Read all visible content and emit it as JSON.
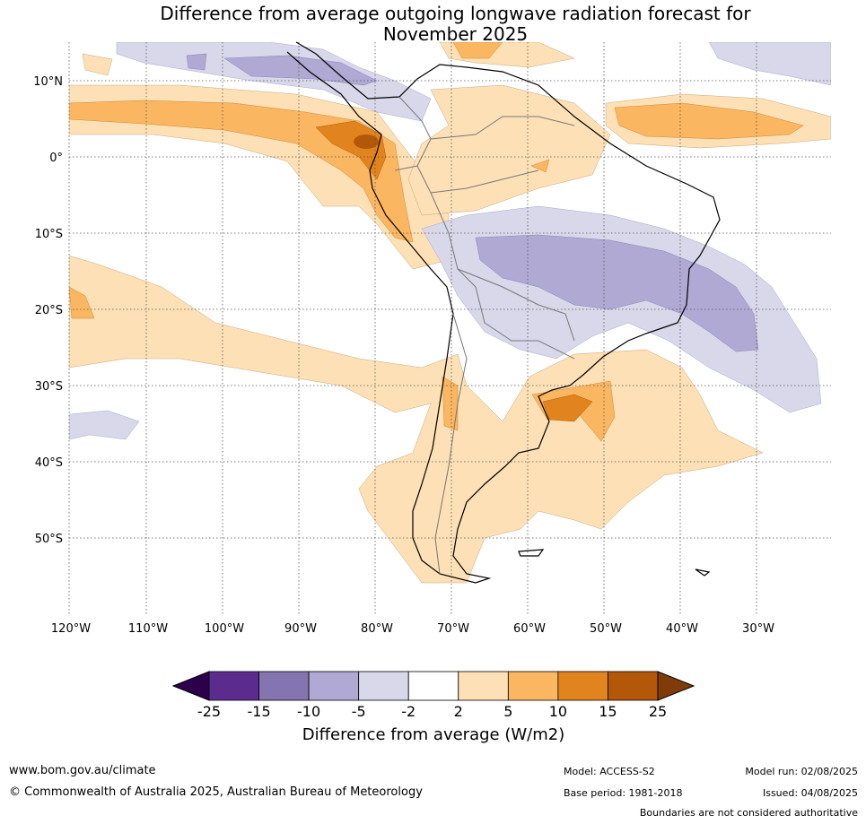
{
  "title": {
    "line1": "Difference from average outgoing longwave radiation forecast for",
    "line2": "November 2025"
  },
  "map": {
    "lat_ticks": [
      "10°N",
      "0°",
      "10°S",
      "20°S",
      "30°S",
      "40°S",
      "50°S"
    ],
    "lon_ticks": [
      "120°W",
      "110°W",
      "100°W",
      "90°W",
      "80°W",
      "70°W",
      "60°W",
      "50°W",
      "40°W",
      "30°W"
    ],
    "gridlines": "dotted"
  },
  "colorbar": {
    "label": "Difference from average (W/m2)",
    "ticks": [
      "-25",
      "-15",
      "-10",
      "-5",
      "-2",
      "2",
      "5",
      "10",
      "15",
      "25"
    ],
    "colors": {
      "below_min": "#2d004b",
      "bins": [
        "#5b2c8e",
        "#8474b0",
        "#b0a9d3",
        "#d8d8ea",
        "#ffffff",
        "#fde0b5",
        "#fbb661",
        "#e2841d",
        "#b35808"
      ],
      "above_max": "#7f3b08"
    }
  },
  "footer": {
    "website": "www.bom.gov.au/climate",
    "copyright": "© Commonwealth of Australia 2025, Australian Bureau of Meteorology",
    "model": "Model: ACCESS-S2",
    "base_period": "Base period: 1981-2018",
    "model_run": "Model run: 02/08/2025",
    "issued": "Issued: 04/08/2025",
    "disclaimer": "Boundaries are not considered authoritative"
  }
}
